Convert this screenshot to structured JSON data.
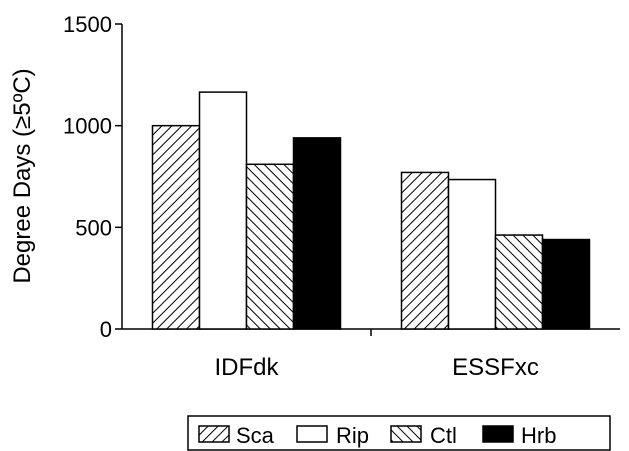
{
  "chart_data": {
    "type": "bar",
    "categories": [
      "IDFdk",
      "ESSFxc"
    ],
    "series": [
      {
        "name": "Sca",
        "pattern": "hatch-up",
        "values": [
          1000,
          770
        ]
      },
      {
        "name": "Rip",
        "pattern": "white",
        "values": [
          1165,
          735
        ]
      },
      {
        "name": "Ctl",
        "pattern": "hatch-down",
        "values": [
          810,
          462
        ]
      },
      {
        "name": "Hrb",
        "pattern": "black",
        "values": [
          940,
          440
        ]
      }
    ],
    "ylabel": "Degree Days (≥5ºC)",
    "ylim": [
      0,
      1500
    ],
    "yticks": [
      0,
      500,
      1000,
      1500
    ],
    "grid": false,
    "legend_position": "bottom"
  }
}
